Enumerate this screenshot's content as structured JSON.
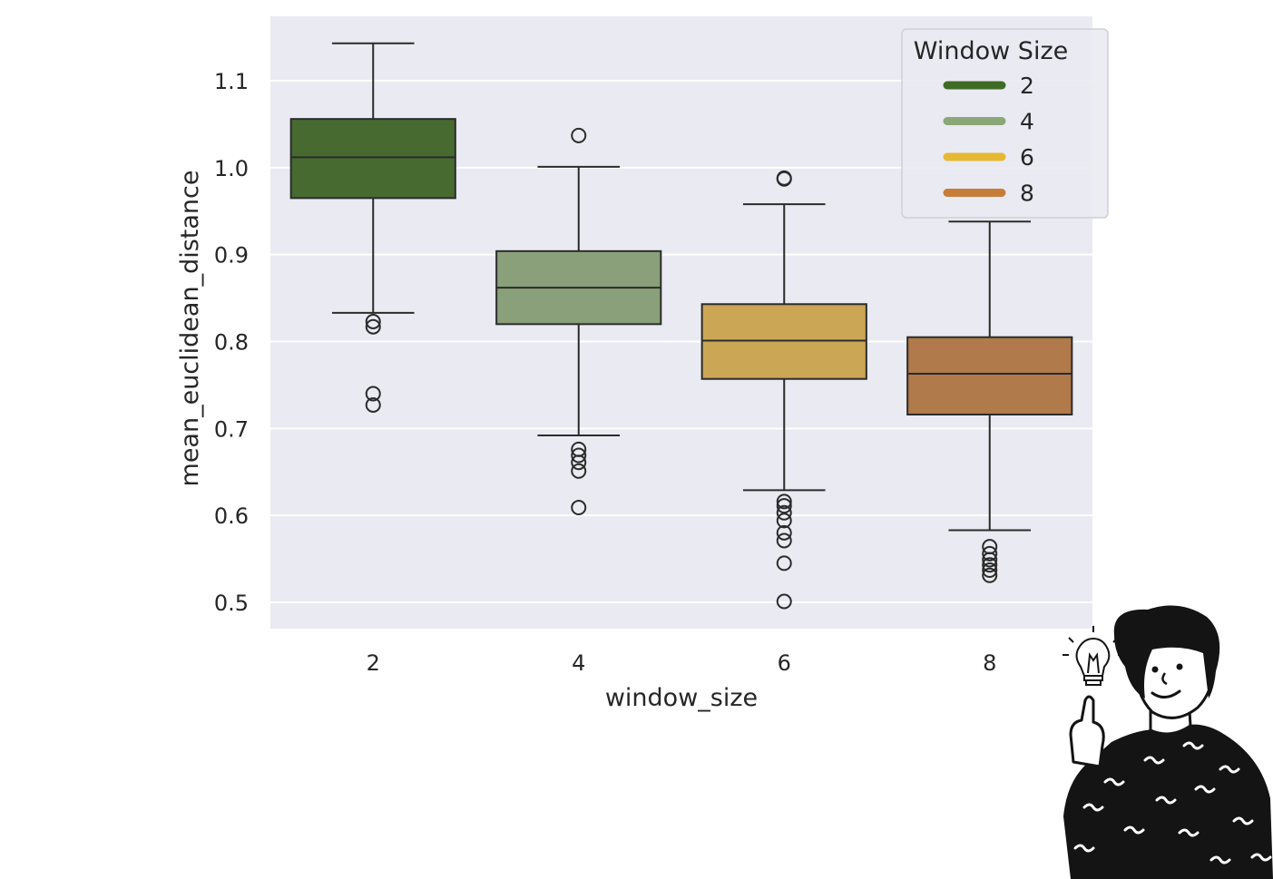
{
  "chart_data": {
    "type": "box",
    "xlabel": "window_size",
    "ylabel": "mean_euclidean_distance",
    "categories": [
      "2",
      "4",
      "6",
      "8"
    ],
    "ylim": [
      0.47,
      1.17
    ],
    "yticks": [
      0.5,
      0.6,
      0.7,
      0.8,
      0.9,
      1.0,
      1.1
    ],
    "ytick_labels": [
      "0.5",
      "0.6",
      "0.7",
      "0.8",
      "0.9",
      "1.0",
      "1.1"
    ],
    "grid": true,
    "background": "#eaeaf2",
    "legend": {
      "title": "Window Size",
      "placement": "top-right",
      "entries": [
        {
          "label": "2",
          "color": "#3f6b25"
        },
        {
          "label": "4",
          "color": "#8aa877"
        },
        {
          "label": "6",
          "color": "#e6b935"
        },
        {
          "label": "8",
          "color": "#c77d3a"
        }
      ]
    },
    "series": [
      {
        "category": "2",
        "color": "#476a31",
        "whisker_low": 0.833,
        "q1": 0.965,
        "median": 1.012,
        "q3": 1.056,
        "whisker_high": 1.143,
        "outliers": [
          0.823,
          0.817,
          0.74,
          0.727
        ]
      },
      {
        "category": "4",
        "color": "#8aa07a",
        "whisker_low": 0.692,
        "q1": 0.82,
        "median": 0.862,
        "q3": 0.904,
        "whisker_high": 1.001,
        "outliers": [
          1.037,
          0.676,
          0.669,
          0.661,
          0.651,
          0.609
        ]
      },
      {
        "category": "6",
        "color": "#cba654",
        "whisker_low": 0.629,
        "q1": 0.757,
        "median": 0.801,
        "q3": 0.843,
        "whisker_high": 0.958,
        "outliers": [
          0.988,
          0.987,
          0.616,
          0.611,
          0.603,
          0.594,
          0.58,
          0.571,
          0.545,
          0.501
        ]
      },
      {
        "category": "8",
        "color": "#b07a4a",
        "whisker_low": 0.583,
        "q1": 0.716,
        "median": 0.763,
        "q3": 0.805,
        "whisker_high": 0.938,
        "outliers": [
          0.564,
          0.556,
          0.549,
          0.543,
          0.537,
          0.531
        ]
      }
    ]
  },
  "decoration": {
    "illustration": "thinking-person-lightbulb"
  }
}
